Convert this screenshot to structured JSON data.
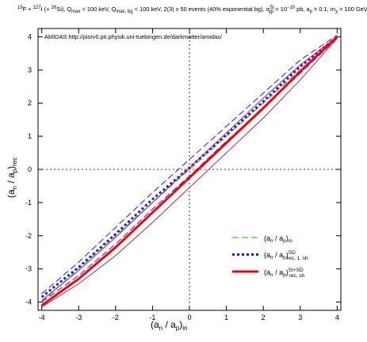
{
  "chart_data": {
    "type": "line",
    "title": [
      "19",
      "F + ",
      "127",
      "I (+ ",
      "28",
      "Si), Q",
      "max",
      " < 100 keV, Q",
      "max, bg",
      " < 100 keV, 2(3) x 50 events (40% exponential bg), σ",
      "SI",
      "χp",
      " = 10",
      "−10",
      " pb, a",
      "p",
      " = 0.1, m",
      "χ",
      " = 100 GeV"
    ],
    "annotation": "AMIDAS   http://pisrv0.pit.physik.uni-tuebingen.de/darkmatter/amidas/",
    "xlabel": [
      "(a",
      "n",
      " / a",
      "p",
      ")",
      "in"
    ],
    "ylabel": [
      "(a",
      "n",
      " / a",
      "p",
      ")",
      "rec"
    ],
    "x": [
      -4,
      -3,
      -2,
      -1,
      0,
      1,
      2,
      3,
      4
    ],
    "series": [
      {
        "name": [
          "(a",
          "n",
          " / a",
          "p",
          ")",
          "in"
        ],
        "color": "#33cc33",
        "dash": "dashed",
        "values": [
          -4,
          -3,
          -2,
          -1,
          0,
          1,
          2,
          3,
          4
        ]
      },
      {
        "name": [
          "(a",
          "n",
          " / a",
          "p",
          ")",
          "SD",
          "rec, 1, sh"
        ],
        "color": "#1a1aff",
        "dash": "dotted",
        "band_color": "#1a1aff",
        "band_dash": "dashed",
        "values": [
          -3.85,
          -2.95,
          -1.95,
          -0.9,
          0.05,
          1.05,
          2.05,
          3.1,
          4.0
        ],
        "upper": [
          -3.75,
          -2.8,
          -1.75,
          -0.7,
          0.3,
          1.3,
          2.3,
          3.3,
          4.05
        ],
        "lower": [
          -4.0,
          -3.2,
          -2.25,
          -1.2,
          -0.2,
          0.85,
          1.85,
          2.9,
          3.95
        ]
      },
      {
        "name": [
          "(a",
          "n",
          " / a",
          "p",
          ")",
          "SI+SD",
          "rec, sh"
        ],
        "color": "#ff0000",
        "dash": "solid",
        "band_color": "#b0206a",
        "band_dash": "solid",
        "values": [
          -4.1,
          -3.3,
          -2.35,
          -1.3,
          -0.25,
          0.8,
          1.85,
          2.95,
          4.0
        ],
        "upper": [
          -3.95,
          -3.05,
          -2.05,
          -1.0,
          0.05,
          1.1,
          2.15,
          3.15,
          4.0
        ],
        "lower": [
          -4.15,
          -3.45,
          -2.6,
          -1.6,
          -0.55,
          0.5,
          1.55,
          2.7,
          3.95
        ]
      }
    ],
    "xlim": [
      -4.1,
      4.1
    ],
    "ylim": [
      -4.25,
      4.25
    ],
    "xticks": [
      -4,
      -3,
      -2,
      -1,
      0,
      1,
      2,
      3,
      4
    ],
    "yticks": [
      -4,
      -3,
      -2,
      -1,
      0,
      1,
      2,
      3,
      4
    ],
    "zero_lines": true,
    "legend": "lower right"
  }
}
